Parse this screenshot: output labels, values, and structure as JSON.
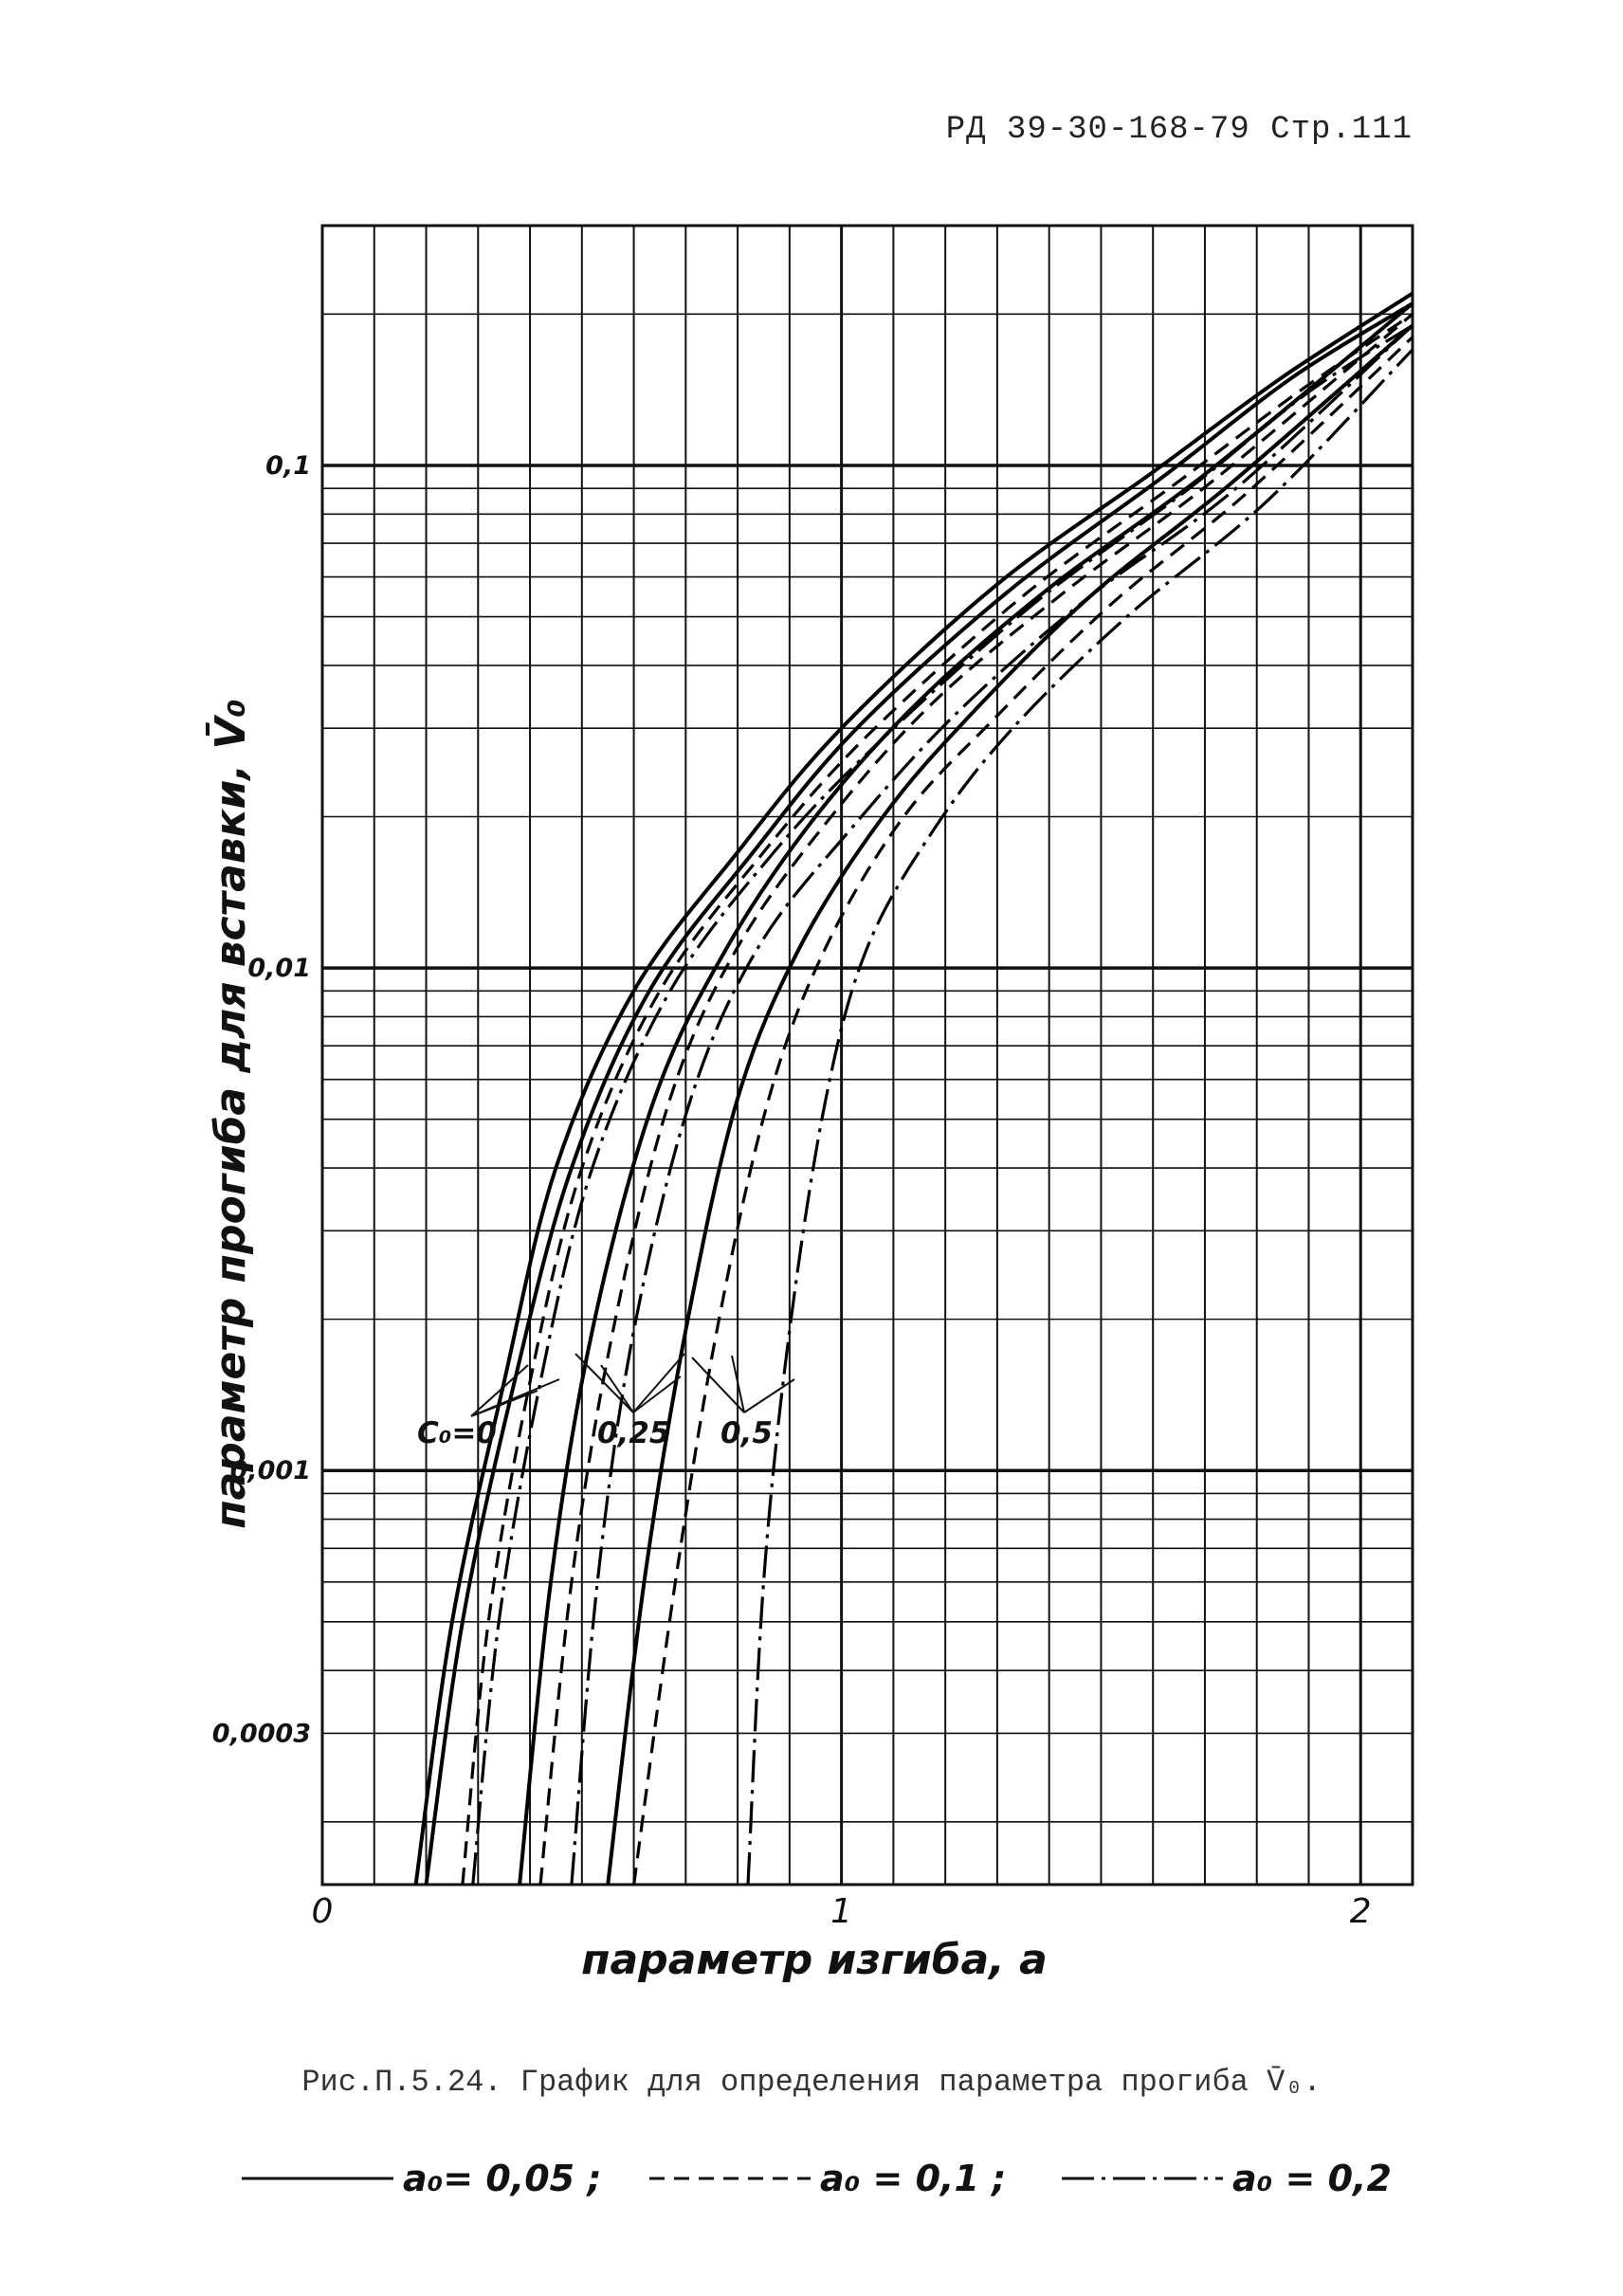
{
  "header": "РД 39-30-168-79  Стр.111",
  "caption": "Рис.П.5.24. График для определения параметра прогиба V̄₀.",
  "legend": [
    {
      "label": "a₀= 0,05 ;",
      "style": "solid"
    },
    {
      "label": "a₀ = 0,1 ;",
      "style": "dashed"
    },
    {
      "label": "a₀ = 0,2",
      "style": "dashdot"
    }
  ],
  "annotations": {
    "c0_0": "C₀=0",
    "c0_025": "0,25",
    "c0_05": "0,5"
  },
  "chart_data": {
    "type": "line",
    "title": "",
    "xlabel": "параметр изгиба, a",
    "ylabel": "параметр прогиба для вставки, V̄₀",
    "x_scale": "linear",
    "y_scale": "log",
    "xlim": [
      0,
      2.1
    ],
    "ylim": [
      0.00015,
      0.3
    ],
    "x_tick_labels": [
      {
        "v": 0,
        "t": "0"
      },
      {
        "v": 1,
        "t": "1"
      },
      {
        "v": 2,
        "t": "2"
      }
    ],
    "y_tick_labels": [
      {
        "v": 0.1,
        "t": "0,1"
      },
      {
        "v": 0.01,
        "t": "0,01"
      },
      {
        "v": 0.001,
        "t": "0,001"
      },
      {
        "v": 0.0003,
        "t": "0,0003"
      }
    ],
    "grid": true,
    "series": [
      {
        "name": "a₀= 0,05",
        "C0": "0",
        "style": "solid",
        "points": [
          [
            0.18,
            0.00015
          ],
          [
            0.25,
            0.0005
          ],
          [
            0.35,
            0.0015
          ],
          [
            0.45,
            0.004
          ],
          [
            0.6,
            0.009
          ],
          [
            0.8,
            0.017
          ],
          [
            1.0,
            0.03
          ],
          [
            1.3,
            0.058
          ],
          [
            1.6,
            0.097
          ],
          [
            1.85,
            0.15
          ],
          [
            2.1,
            0.22
          ]
        ]
      },
      {
        "name": "a₀= 0,05",
        "C0": "0",
        "style": "solid",
        "points": [
          [
            0.2,
            0.00015
          ],
          [
            0.27,
            0.0005
          ],
          [
            0.37,
            0.0015
          ],
          [
            0.48,
            0.004
          ],
          [
            0.63,
            0.009
          ],
          [
            0.83,
            0.017
          ],
          [
            1.03,
            0.03
          ],
          [
            1.32,
            0.056
          ],
          [
            1.62,
            0.095
          ],
          [
            1.87,
            0.15
          ],
          [
            2.1,
            0.21
          ]
        ]
      },
      {
        "name": "a₀ = 0,1",
        "C0": "0",
        "style": "dashed",
        "points": [
          [
            0.27,
            0.00015
          ],
          [
            0.32,
            0.0005
          ],
          [
            0.4,
            0.0015
          ],
          [
            0.5,
            0.004
          ],
          [
            0.65,
            0.009
          ],
          [
            0.85,
            0.017
          ],
          [
            1.05,
            0.029
          ],
          [
            1.35,
            0.055
          ],
          [
            1.65,
            0.093
          ],
          [
            1.88,
            0.14
          ],
          [
            2.1,
            0.2
          ]
        ]
      },
      {
        "name": "a₀ = 0,2",
        "C0": "0",
        "style": "dashdot",
        "points": [
          [
            0.29,
            0.00015
          ],
          [
            0.34,
            0.0005
          ],
          [
            0.42,
            0.0015
          ],
          [
            0.52,
            0.004
          ],
          [
            0.67,
            0.009
          ],
          [
            0.87,
            0.017
          ],
          [
            1.07,
            0.028
          ],
          [
            1.37,
            0.053
          ],
          [
            1.67,
            0.09
          ],
          [
            1.9,
            0.14
          ],
          [
            2.1,
            0.19
          ]
        ]
      },
      {
        "name": "a₀= 0,05",
        "C0": "0,25",
        "style": "solid",
        "points": [
          [
            0.38,
            0.00015
          ],
          [
            0.44,
            0.0006
          ],
          [
            0.52,
            0.0019
          ],
          [
            0.64,
            0.0055
          ],
          [
            0.78,
            0.011
          ],
          [
            0.95,
            0.02
          ],
          [
            1.15,
            0.034
          ],
          [
            1.4,
            0.057
          ],
          [
            1.7,
            0.096
          ],
          [
            2.1,
            0.21
          ]
        ]
      },
      {
        "name": "a₀ = 0,1",
        "C0": "0,25",
        "style": "dashed",
        "points": [
          [
            0.42,
            0.00015
          ],
          [
            0.48,
            0.0006
          ],
          [
            0.56,
            0.0019
          ],
          [
            0.67,
            0.0055
          ],
          [
            0.8,
            0.011
          ],
          [
            0.98,
            0.02
          ],
          [
            1.18,
            0.034
          ],
          [
            1.43,
            0.056
          ],
          [
            1.72,
            0.094
          ],
          [
            2.1,
            0.2
          ]
        ]
      },
      {
        "name": "a₀ = 0,2",
        "C0": "0,25",
        "style": "dashdot",
        "points": [
          [
            0.48,
            0.00015
          ],
          [
            0.53,
            0.0006
          ],
          [
            0.6,
            0.0019
          ],
          [
            0.71,
            0.0055
          ],
          [
            0.84,
            0.011
          ],
          [
            1.02,
            0.019
          ],
          [
            1.22,
            0.032
          ],
          [
            1.47,
            0.054
          ],
          [
            1.76,
            0.09
          ],
          [
            2.1,
            0.19
          ]
        ]
      },
      {
        "name": "a₀= 0,05",
        "C0": "0,5",
        "style": "solid",
        "points": [
          [
            0.55,
            0.00015
          ],
          [
            0.62,
            0.0006
          ],
          [
            0.7,
            0.0019
          ],
          [
            0.8,
            0.0055
          ],
          [
            0.92,
            0.011
          ],
          [
            1.08,
            0.02
          ],
          [
            1.25,
            0.032
          ],
          [
            1.48,
            0.055
          ],
          [
            1.75,
            0.092
          ],
          [
            2.1,
            0.19
          ]
        ]
      },
      {
        "name": "a₀ = 0,1",
        "C0": "0,5",
        "style": "dashed",
        "points": [
          [
            0.6,
            0.00015
          ],
          [
            0.68,
            0.0006
          ],
          [
            0.76,
            0.0019
          ],
          [
            0.86,
            0.0055
          ],
          [
            0.97,
            0.011
          ],
          [
            1.12,
            0.02
          ],
          [
            1.29,
            0.031
          ],
          [
            1.52,
            0.053
          ],
          [
            1.78,
            0.088
          ],
          [
            2.1,
            0.18
          ]
        ]
      },
      {
        "name": "a₀ = 0,2",
        "C0": "0,5",
        "style": "dashdot",
        "points": [
          [
            0.82,
            0.00015
          ],
          [
            0.85,
            0.0006
          ],
          [
            0.9,
            0.0019
          ],
          [
            0.97,
            0.0055
          ],
          [
            1.05,
            0.011
          ],
          [
            1.18,
            0.019
          ],
          [
            1.33,
            0.03
          ],
          [
            1.55,
            0.05
          ],
          [
            1.82,
            0.085
          ],
          [
            2.1,
            0.17
          ]
        ]
      }
    ]
  }
}
